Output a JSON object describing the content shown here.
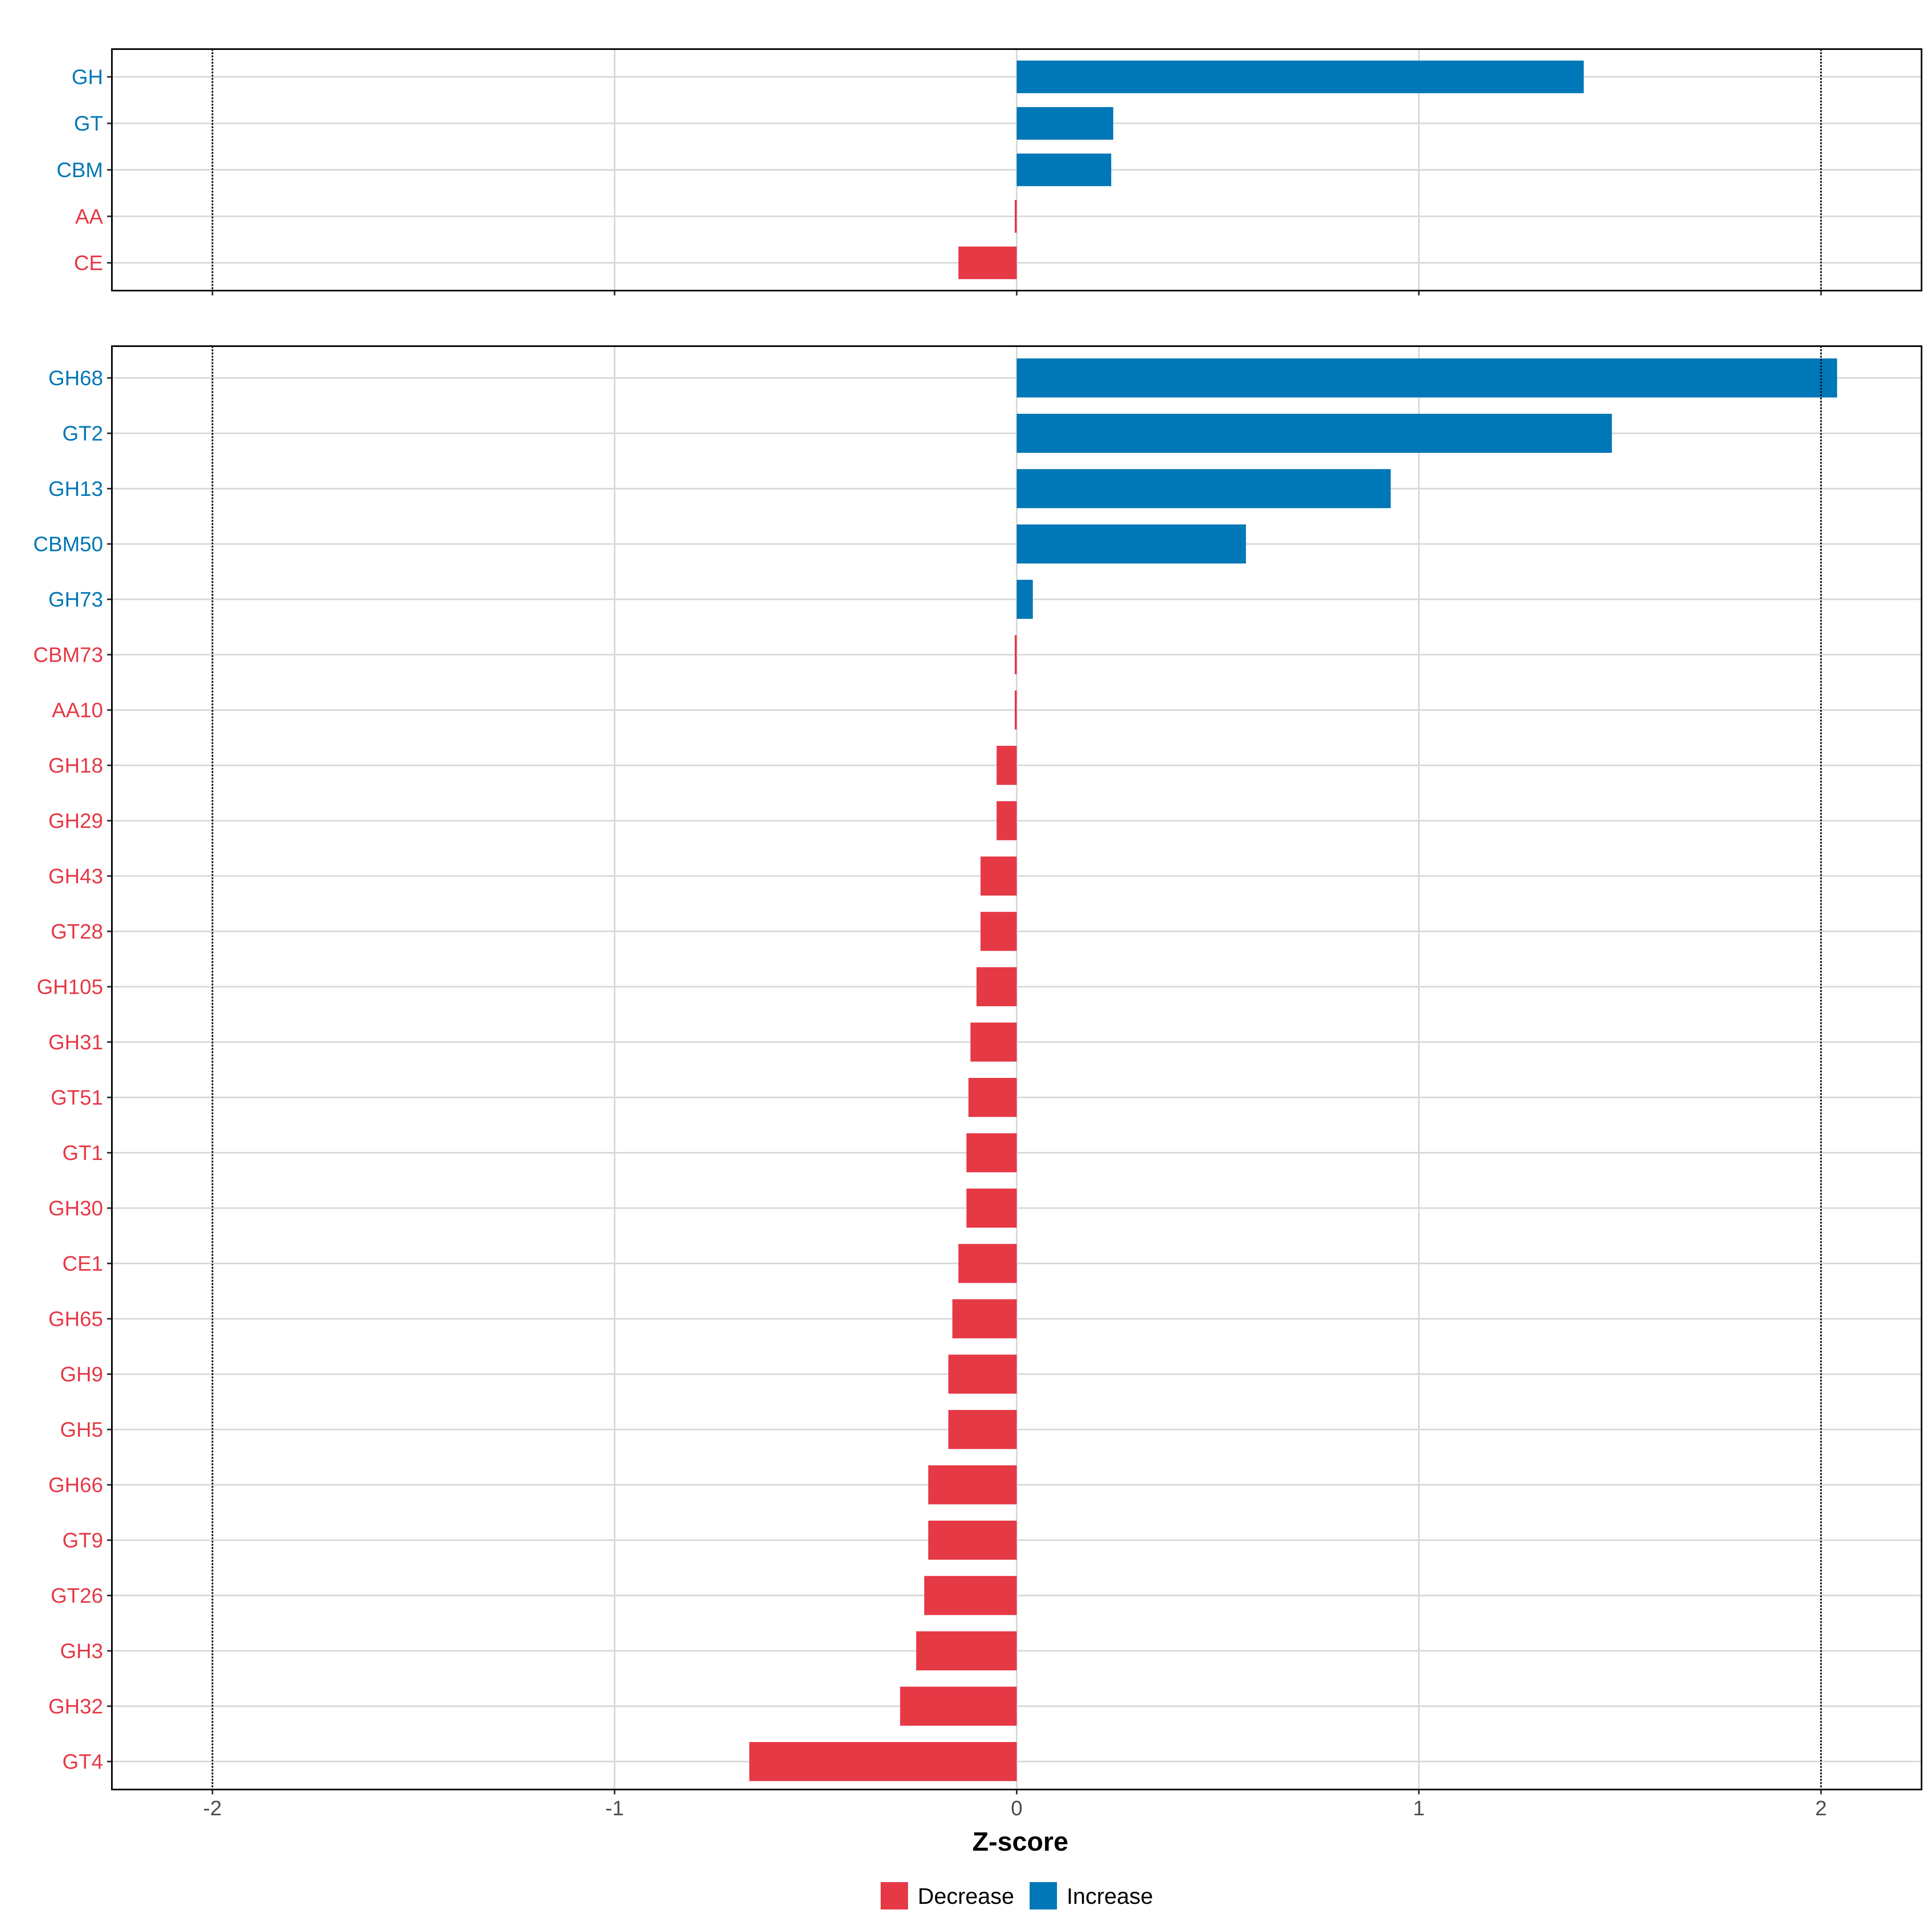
{
  "chart_data": [
    {
      "type": "bar",
      "orientation": "horizontal",
      "panel": "top",
      "categories": [
        "GH",
        "GT",
        "CBM",
        "AA",
        "CE"
      ],
      "values": [
        1.41,
        0.24,
        0.235,
        -0.005,
        -0.145
      ],
      "xlim": [
        -2.25,
        2.25
      ],
      "reference_lines": [
        -2,
        2
      ]
    },
    {
      "type": "bar",
      "orientation": "horizontal",
      "panel": "bottom",
      "categories": [
        "GH68",
        "GT2",
        "GH13",
        "CBM50",
        "GH73",
        "CBM73",
        "AA10",
        "GH18",
        "GH29",
        "GH43",
        "GT28",
        "GH105",
        "GH31",
        "GT51",
        "GT1",
        "GH30",
        "CE1",
        "GH65",
        "GH9",
        "GH5",
        "GH66",
        "GT9",
        "GT26",
        "GH3",
        "GH32",
        "GT4"
      ],
      "values": [
        2.04,
        1.48,
        0.93,
        0.57,
        0.04,
        -0.005,
        -0.005,
        -0.05,
        -0.05,
        -0.09,
        -0.09,
        -0.1,
        -0.115,
        -0.12,
        -0.125,
        -0.125,
        -0.145,
        -0.16,
        -0.17,
        -0.17,
        -0.22,
        -0.22,
        -0.23,
        -0.25,
        -0.29,
        -0.665
      ],
      "xlim": [
        -2.25,
        2.25
      ],
      "reference_lines": [
        -2,
        2
      ],
      "xticks": [
        -2,
        -1,
        0,
        1,
        2
      ],
      "xtick_labels": [
        "-2",
        "-1",
        "0",
        "1",
        "2"
      ],
      "xlabel": "Z-score"
    }
  ],
  "legend": {
    "items": [
      {
        "label": "Decrease",
        "color": "#E63946"
      },
      {
        "label": "Increase",
        "color": "#0077B6"
      }
    ]
  },
  "colors": {
    "decrease": "#E63946",
    "increase": "#0077B6",
    "grid": "#D9D9D9",
    "frame": "#000000"
  }
}
